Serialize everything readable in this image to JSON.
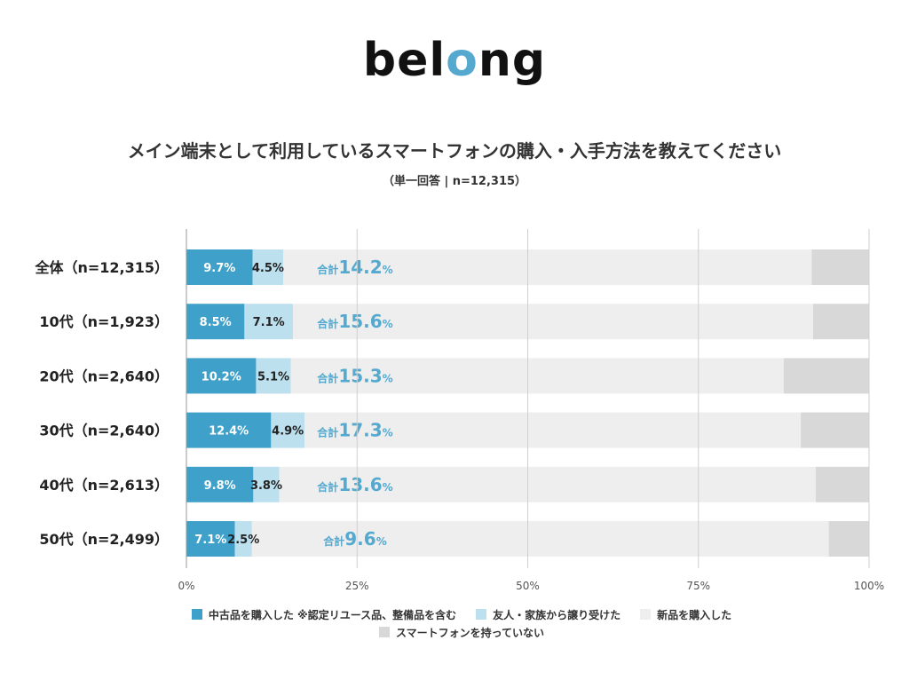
{
  "logo": {
    "pre": "bel",
    "o": "o",
    "post": "ng"
  },
  "title": "メイン端末として利用しているスマートフォンの購入・入手方法を教えてください",
  "subtitle": "（単一回答 | n=12,315）",
  "colors": {
    "used": "#3fa1c9",
    "friends": "#bde0ee",
    "new": "#eeeeee",
    "none": "#d8d8d8",
    "total_label": "#55a9cf"
  },
  "chart_data": {
    "type": "bar",
    "orientation": "horizontal",
    "stacked": true,
    "categories": [
      "全体（n=12,315）",
      "10代（n=1,923）",
      "20代（n=2,640）",
      "30代（n=2,640）",
      "40代（n=2,613）",
      "50代（n=2,499）"
    ],
    "series": [
      {
        "name": "中古品を購入した ※認定リユース品、整備品を含む",
        "values": [
          9.7,
          8.5,
          10.2,
          12.4,
          9.8,
          7.1
        ],
        "labels": [
          "9.7%",
          "8.5%",
          "10.2%",
          "12.4%",
          "9.8%",
          "7.1%"
        ]
      },
      {
        "name": "友人・家族から譲り受けた",
        "values": [
          4.5,
          7.1,
          5.1,
          4.9,
          3.8,
          2.5
        ],
        "labels": [
          "4.5%",
          "7.1%",
          "5.1%",
          "4.9%",
          "3.8%",
          "2.5%"
        ]
      },
      {
        "name": "新品を購入した",
        "values": [
          77.4,
          76.2,
          72.2,
          72.7,
          78.6,
          84.5
        ]
      },
      {
        "name": "スマートフォンを持っていない",
        "values": [
          8.4,
          8.2,
          12.5,
          10.0,
          7.8,
          5.9
        ]
      }
    ],
    "totals": {
      "prefix": "合計",
      "values": [
        "14.2",
        "15.6",
        "15.3",
        "17.3",
        "13.6",
        "9.6"
      ],
      "suffix": "%"
    },
    "xlim": [
      0,
      100
    ],
    "xticks": [
      "0%",
      "25%",
      "50%",
      "75%",
      "100%"
    ],
    "grid": true,
    "legend": "bottom"
  }
}
